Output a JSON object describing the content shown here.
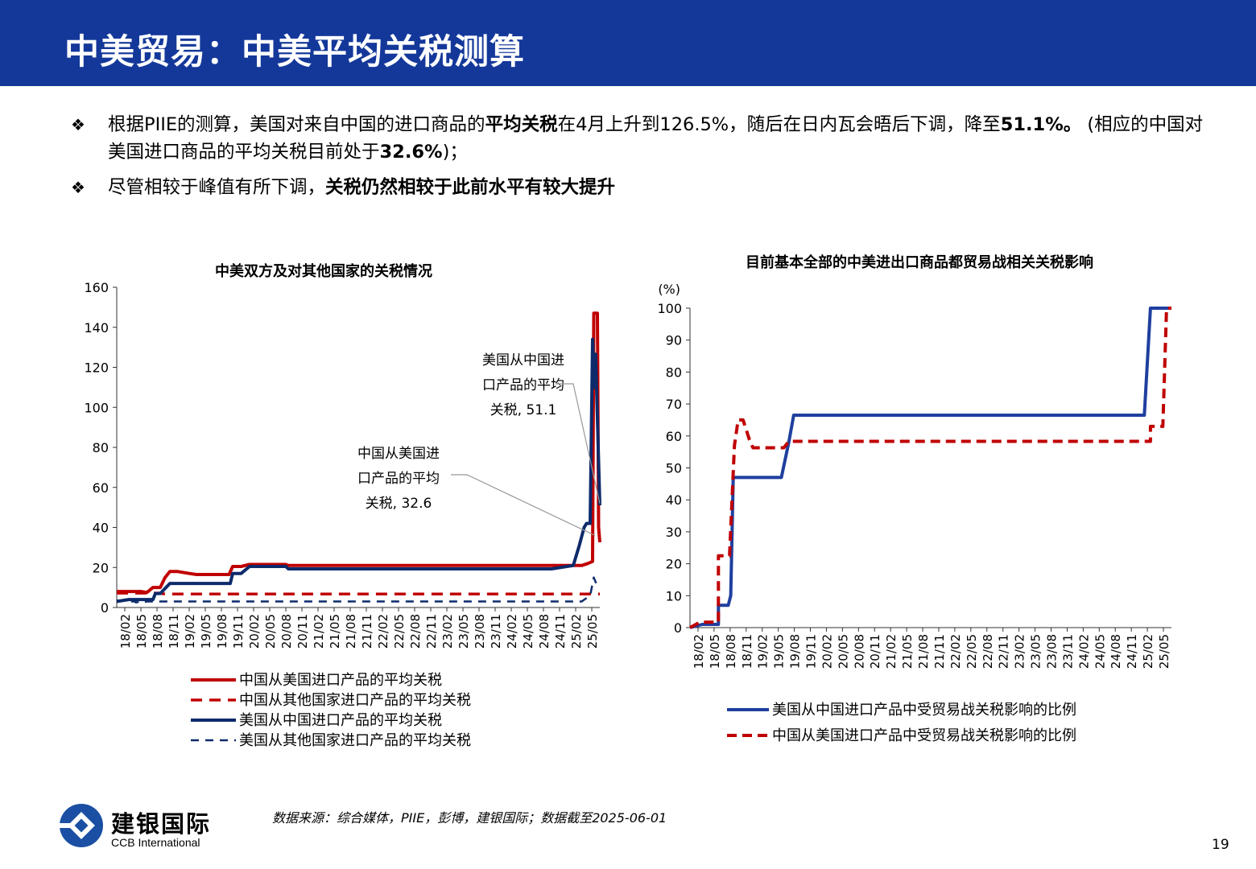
{
  "header": {
    "title": "中美贸易：中美平均关税测算"
  },
  "bullets": [
    {
      "parts": [
        {
          "text": "根据PIIE的测算，美国对来自中国的进口商品的",
          "bold": false
        },
        {
          "text": "平均关税",
          "bold": true
        },
        {
          "text": "在4月上升到126.5%，随后在日内瓦会晤后下调，降至",
          "bold": false
        },
        {
          "text": "51.1%。",
          "bold": true
        },
        {
          "text": "(相应的中国对美国进口商品的平均关税目前处于",
          "bold": false
        },
        {
          "text": "32.6%",
          "bold": true
        },
        {
          "text": ")；",
          "bold": false
        }
      ]
    },
    {
      "parts": [
        {
          "text": "尽管相较于峰值有所下调，",
          "bold": false
        },
        {
          "text": "关税仍然相较于此前水平有较大提升",
          "bold": true
        }
      ]
    }
  ],
  "bullet_mark": "❖",
  "colors": {
    "header_bg": "#14389a",
    "red": "#c00000",
    "navy": "#0d2a6b",
    "blue": "#1f3f9f"
  },
  "chart_data": [
    {
      "type": "line",
      "title": "中美双方及对其他国家的关税情况",
      "ylim": [
        0,
        160
      ],
      "yticks": [
        "0",
        "20",
        "40",
        "60",
        "80",
        "100",
        "120",
        "140",
        "160"
      ],
      "xtick_labels": [
        "18/02",
        "18/05",
        "18/08",
        "18/11",
        "19/02",
        "19/05",
        "19/08",
        "19/11",
        "20/02",
        "20/05",
        "20/08",
        "20/11",
        "21/02",
        "21/05",
        "21/08",
        "21/11",
        "22/02",
        "22/05",
        "22/08",
        "22/11",
        "23/02",
        "23/05",
        "23/08",
        "23/11",
        "24/02",
        "24/05",
        "24/08",
        "24/11",
        "25/02",
        "25/05"
      ],
      "xlim": [
        0,
        40
      ],
      "series": [
        {
          "name": "中国从美国进口产品的平均关税",
          "color": "#c00000",
          "dash": "solid",
          "points": [
            [
              0,
              8
            ],
            [
              2,
              8
            ],
            [
              2.5,
              7.5
            ],
            [
              3,
              10
            ],
            [
              3.6,
              10
            ],
            [
              4,
              15
            ],
            [
              4.4,
              18
            ],
            [
              5,
              18
            ],
            [
              6,
              17
            ],
            [
              6.6,
              16.5
            ],
            [
              8,
              16.5
            ],
            [
              9.3,
              16.5
            ],
            [
              9.6,
              20.5
            ],
            [
              10.3,
              20.5
            ],
            [
              11,
              21.5
            ],
            [
              14,
              21.5
            ],
            [
              14.2,
              21
            ],
            [
              20,
              21
            ],
            [
              30,
              21
            ],
            [
              36,
              21
            ],
            [
              38.5,
              21
            ],
            [
              39,
              22
            ],
            [
              39.4,
              23
            ],
            [
              39.5,
              147
            ],
            [
              39.8,
              147
            ],
            [
              39.9,
              40
            ],
            [
              40,
              32.6
            ]
          ]
        },
        {
          "name": "中国从其他国家进口产品的平均关税",
          "color": "#c00000",
          "dash": "dashed",
          "points": [
            [
              0,
              7.2
            ],
            [
              3.5,
              7.2
            ],
            [
              4,
              6.7
            ],
            [
              40,
              6.7
            ]
          ]
        },
        {
          "name": "美国从中国进口产品的平均关税",
          "color": "#0d2a6b",
          "dash": "solid",
          "points": [
            [
              0,
              3
            ],
            [
              1,
              4
            ],
            [
              2,
              4
            ],
            [
              3,
              4
            ],
            [
              3.2,
              7
            ],
            [
              3.6,
              7
            ],
            [
              4.4,
              12
            ],
            [
              9.4,
              12
            ],
            [
              9.6,
              17
            ],
            [
              10.3,
              17
            ],
            [
              11,
              20.5
            ],
            [
              14,
              20.5
            ],
            [
              14.2,
              19.3
            ],
            [
              30,
              19.3
            ],
            [
              36,
              19.3
            ],
            [
              37.8,
              21
            ],
            [
              38.3,
              31
            ],
            [
              38.7,
              40
            ],
            [
              38.9,
              42
            ],
            [
              39.2,
              42
            ],
            [
              39.4,
              134
            ],
            [
              39.55,
              110
            ],
            [
              39.65,
              126.5
            ],
            [
              40,
              51.1
            ]
          ]
        },
        {
          "name": "美国从其他国家进口产品的平均关税",
          "color": "#0d2a6b",
          "dash": "dashed",
          "points": [
            [
              0,
              3.5
            ],
            [
              0.5,
              3.5
            ],
            [
              1,
              3
            ],
            [
              1.5,
              3
            ],
            [
              1.6,
              2.5
            ],
            [
              1.9,
              3
            ],
            [
              2.2,
              2.5
            ],
            [
              2.5,
              3
            ],
            [
              38.5,
              3
            ],
            [
              39.2,
              6
            ],
            [
              39.5,
              15
            ],
            [
              39.7,
              12
            ],
            [
              40,
              12.5
            ]
          ]
        }
      ],
      "annotations": [
        {
          "lines": [
            "美国从中国进",
            "口产品的平均",
            "关税, 51.1"
          ]
        },
        {
          "lines": [
            "中国从美国进",
            "口产品的平均",
            "关税, 32.6"
          ]
        }
      ],
      "legend": "bottom"
    },
    {
      "type": "line",
      "title": "目前基本全部的中美进出口商品都贸易战相关关税影响",
      "ylabel": "(%)",
      "ylim": [
        0,
        100
      ],
      "yticks": [
        "0",
        "10",
        "20",
        "30",
        "40",
        "50",
        "60",
        "70",
        "80",
        "90",
        "100"
      ],
      "xtick_labels": [
        "18/02",
        "18/05",
        "18/08",
        "18/11",
        "19/02",
        "19/05",
        "19/08",
        "19/11",
        "20/02",
        "20/05",
        "20/08",
        "20/11",
        "21/02",
        "21/05",
        "21/08",
        "21/11",
        "22/02",
        "22/05",
        "22/08",
        "22/11",
        "23/02",
        "23/05",
        "23/08",
        "23/11",
        "24/02",
        "24/05",
        "24/08",
        "24/11",
        "25/02",
        "25/05"
      ],
      "xlim": [
        0,
        39
      ],
      "series": [
        {
          "name": "美国从中国进口产品中受贸易战关税影响的比例",
          "color": "#1f3f9f",
          "dash": "solid",
          "points": [
            [
              0,
              0
            ],
            [
              1,
              1
            ],
            [
              2,
              1
            ],
            [
              2.3,
              1
            ],
            [
              2.3,
              7
            ],
            [
              3.1,
              7
            ],
            [
              3.3,
              10
            ],
            [
              3.5,
              47
            ],
            [
              7.4,
              47
            ],
            [
              8,
              58
            ],
            [
              8.4,
              66.5
            ],
            [
              26,
              66.5
            ],
            [
              36.8,
              66.5
            ],
            [
              37.3,
              100
            ],
            [
              39,
              100
            ]
          ]
        },
        {
          "name": "中国从美国进口产品中受贸易战关税影响的比例",
          "color": "#c00000",
          "dash": "dashed",
          "points": [
            [
              0,
              0
            ],
            [
              0.8,
              1.7
            ],
            [
              2.3,
              1.7
            ],
            [
              2.3,
              22.5
            ],
            [
              3.2,
              22.5
            ],
            [
              3.6,
              57
            ],
            [
              3.9,
              65
            ],
            [
              4.3,
              65
            ],
            [
              4.8,
              59
            ],
            [
              5.1,
              56.3
            ],
            [
              7.6,
              56.3
            ],
            [
              8,
              58.3
            ],
            [
              37.3,
              58.3
            ],
            [
              37.3,
              63
            ],
            [
              38.3,
              63
            ],
            [
              38.6,
              100
            ],
            [
              39,
              100
            ]
          ]
        }
      ],
      "legend": "bottom"
    }
  ],
  "footer": {
    "source": "数据来源：综合媒体，PIIE，彭博，建银国际；数据截至2025-06-01",
    "page": "19"
  },
  "logo": {
    "cn": "建银国际",
    "en": "CCB International"
  }
}
